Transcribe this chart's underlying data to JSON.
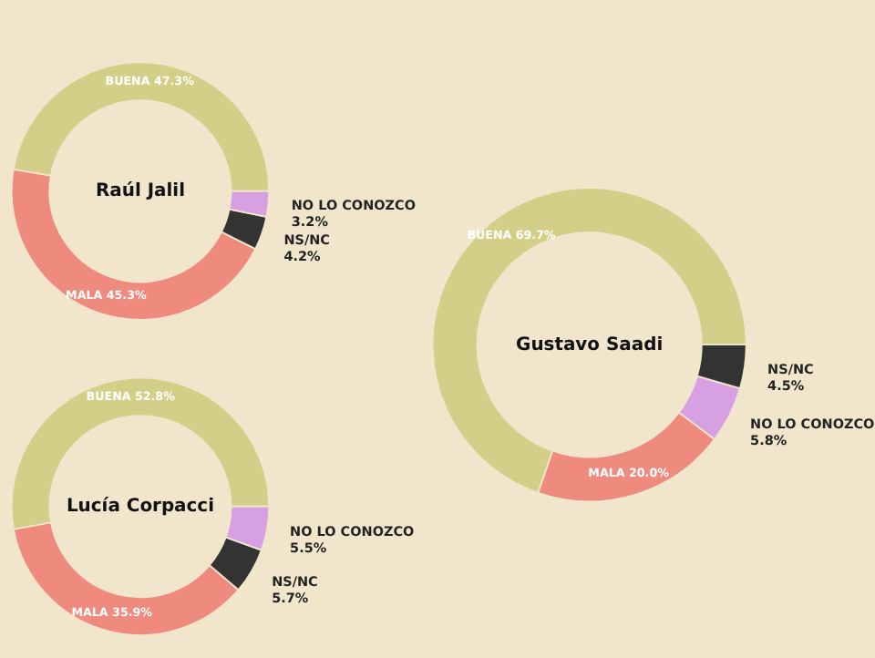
{
  "chart_data": [
    {
      "type": "donut",
      "title": "Raúl Jalil",
      "categories": [
        "BUENA",
        "MALA",
        "NS/NC",
        "NO LO CONOZCO"
      ],
      "values": [
        47.3,
        45.3,
        4.2,
        3.2
      ],
      "value_labels": [
        "47.3%",
        "45.3%",
        "4.2%",
        "3.2%"
      ],
      "colors": [
        "#d3cf88",
        "#ef8a7e",
        "#333333",
        "#d7a0e2"
      ],
      "legend": false
    },
    {
      "type": "donut",
      "title": "Lucía Corpacci",
      "categories": [
        "BUENA",
        "MALA",
        "NS/NC",
        "NO LO CONOZCO"
      ],
      "values": [
        52.8,
        35.9,
        5.7,
        5.5
      ],
      "value_labels": [
        "52.8%",
        "35.9%",
        "5.7%",
        "5.5%"
      ],
      "colors": [
        "#d3cf88",
        "#ef8a7e",
        "#333333",
        "#d7a0e2"
      ],
      "legend": false
    },
    {
      "type": "donut",
      "title": "Gustavo Saadi",
      "categories": [
        "BUENA",
        "MALA",
        "NO LO CONOZCO",
        "NS/NC"
      ],
      "values": [
        69.7,
        20.0,
        5.8,
        4.5
      ],
      "value_labels": [
        "69.7%",
        "20.0%",
        "5.8%",
        "4.5%"
      ],
      "colors": [
        "#d3cf88",
        "#ef8a7e",
        "#d7a0e2",
        "#333333"
      ],
      "legend": false
    }
  ]
}
